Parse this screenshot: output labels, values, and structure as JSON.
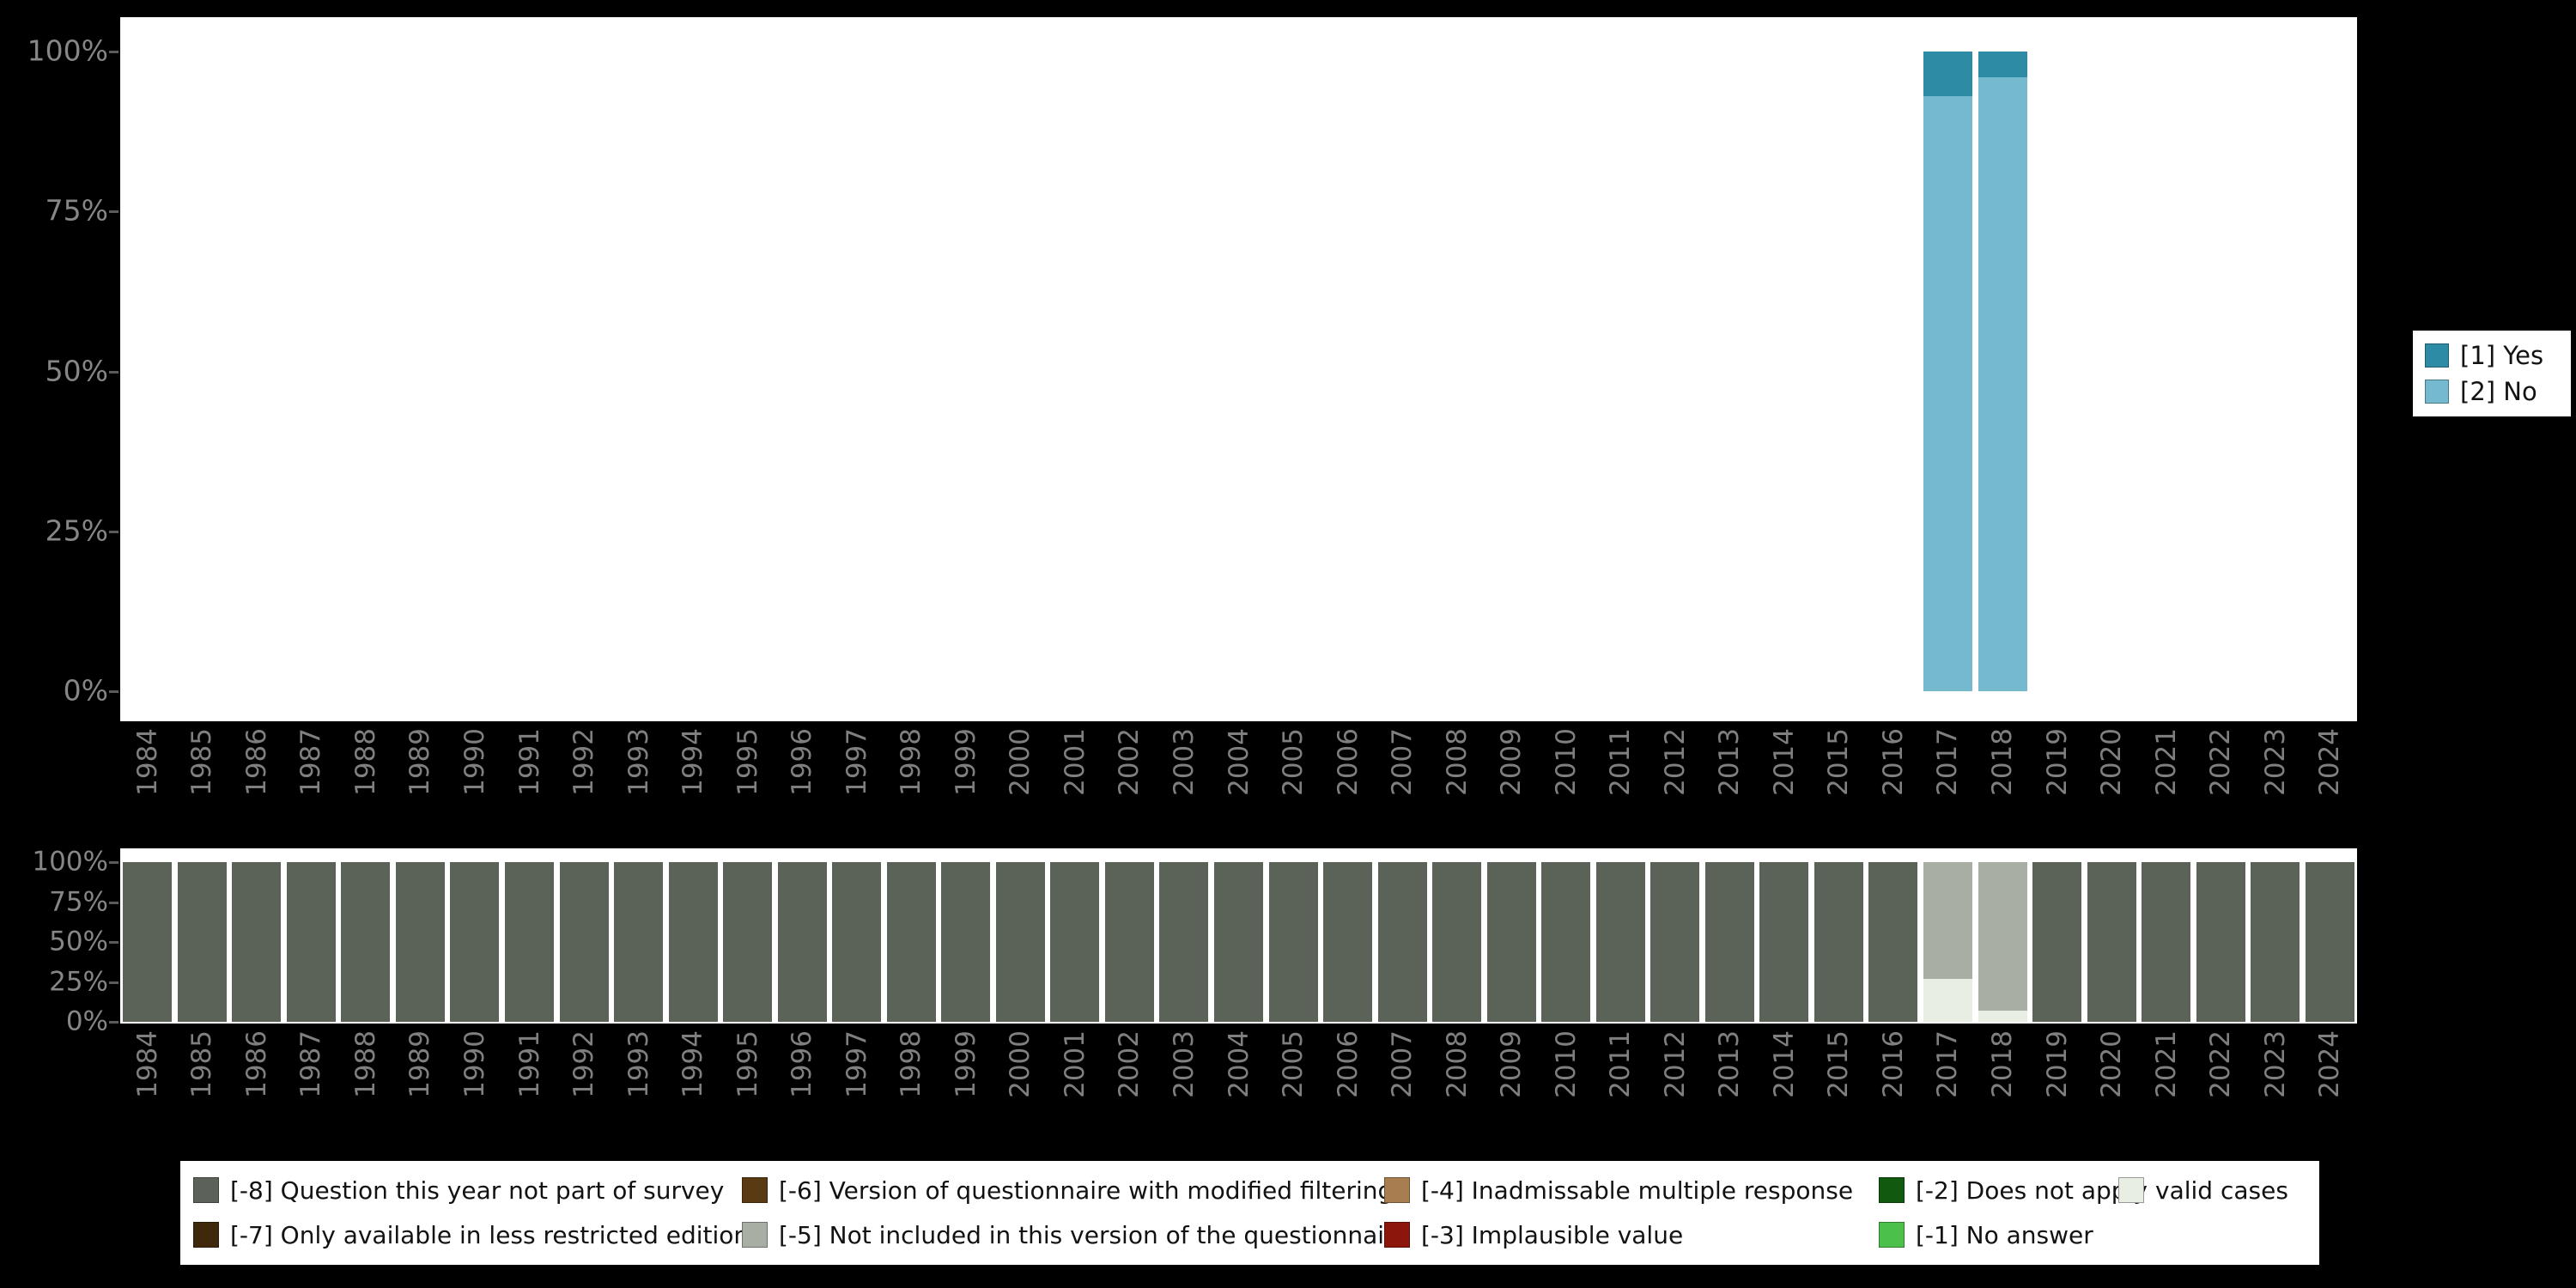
{
  "page": {
    "background": "#000000",
    "panel_background": "#ffffff",
    "axis_text_color": "#7f7f7f"
  },
  "colors": {
    "yes": "#2e8ba6",
    "no": "#74b9ce",
    "m8": "#5b6359",
    "m7": "#40280c",
    "m6": "#593a12",
    "m5": "#a8aea4",
    "m4": "#a87e50",
    "m3": "#8c150c",
    "m2": "#10590f",
    "m1": "#4bc14b",
    "valid": "#e8eee3"
  },
  "chart_data": [
    {
      "id": "answers-by-year",
      "type": "bar",
      "stacked": true,
      "title": "",
      "xlabel": "",
      "ylabel": "",
      "grid": false,
      "ylim": [
        0,
        100
      ],
      "ytick_labels": [
        "0%",
        "25%",
        "50%",
        "75%",
        "100%"
      ],
      "ytick_values": [
        0,
        25,
        50,
        75,
        100
      ],
      "legend_position": "right",
      "categories": [
        "1984",
        "1985",
        "1986",
        "1987",
        "1988",
        "1989",
        "1990",
        "1991",
        "1992",
        "1993",
        "1994",
        "1995",
        "1996",
        "1997",
        "1998",
        "1999",
        "2000",
        "2001",
        "2002",
        "2003",
        "2004",
        "2005",
        "2006",
        "2007",
        "2008",
        "2009",
        "2010",
        "2011",
        "2012",
        "2013",
        "2014",
        "2015",
        "2016",
        "2017",
        "2018",
        "2019",
        "2020",
        "2021",
        "2022",
        "2023",
        "2024"
      ],
      "series": [
        {
          "name": "[2] No",
          "color_key": "no",
          "values": [
            0,
            0,
            0,
            0,
            0,
            0,
            0,
            0,
            0,
            0,
            0,
            0,
            0,
            0,
            0,
            0,
            0,
            0,
            0,
            0,
            0,
            0,
            0,
            0,
            0,
            0,
            0,
            0,
            0,
            0,
            0,
            0,
            0,
            93,
            96,
            0,
            0,
            0,
            0,
            0,
            0
          ]
        },
        {
          "name": "[1] Yes",
          "color_key": "yes",
          "values": [
            0,
            0,
            0,
            0,
            0,
            0,
            0,
            0,
            0,
            0,
            0,
            0,
            0,
            0,
            0,
            0,
            0,
            0,
            0,
            0,
            0,
            0,
            0,
            0,
            0,
            0,
            0,
            0,
            0,
            0,
            0,
            0,
            0,
            7,
            4,
            0,
            0,
            0,
            0,
            0,
            0
          ]
        }
      ]
    },
    {
      "id": "missingness-by-year",
      "type": "bar",
      "stacked": true,
      "title": "",
      "xlabel": "",
      "ylabel": "",
      "grid": false,
      "ylim": [
        0,
        100
      ],
      "ytick_labels": [
        "0%",
        "25%",
        "50%",
        "75%",
        "100%"
      ],
      "ytick_values": [
        0,
        25,
        50,
        75,
        100
      ],
      "legend_position": "bottom",
      "categories": [
        "1984",
        "1985",
        "1986",
        "1987",
        "1988",
        "1989",
        "1990",
        "1991",
        "1992",
        "1993",
        "1994",
        "1995",
        "1996",
        "1997",
        "1998",
        "1999",
        "2000",
        "2001",
        "2002",
        "2003",
        "2004",
        "2005",
        "2006",
        "2007",
        "2008",
        "2009",
        "2010",
        "2011",
        "2012",
        "2013",
        "2014",
        "2015",
        "2016",
        "2017",
        "2018",
        "2019",
        "2020",
        "2021",
        "2022",
        "2023",
        "2024"
      ],
      "series": [
        {
          "name": "valid cases",
          "color_key": "valid",
          "values": [
            0,
            0,
            0,
            0,
            0,
            0,
            0,
            0,
            0,
            0,
            0,
            0,
            0,
            0,
            0,
            0,
            0,
            0,
            0,
            0,
            0,
            0,
            0,
            0,
            0,
            0,
            0,
            0,
            0,
            0,
            0,
            0,
            0,
            27,
            7,
            0,
            0,
            0,
            0,
            0,
            0
          ]
        },
        {
          "name": "[-5] Not included in this version of the questionnaire",
          "color_key": "m5",
          "values": [
            0,
            0,
            0,
            0,
            0,
            0,
            0,
            0,
            0,
            0,
            0,
            0,
            0,
            0,
            0,
            0,
            0,
            0,
            0,
            0,
            0,
            0,
            0,
            0,
            0,
            0,
            0,
            0,
            0,
            0,
            0,
            0,
            0,
            73,
            93,
            0,
            0,
            0,
            0,
            0,
            0
          ]
        },
        {
          "name": "[-8] Question this year not part of survey",
          "color_key": "m8",
          "values": [
            100,
            100,
            100,
            100,
            100,
            100,
            100,
            100,
            100,
            100,
            100,
            100,
            100,
            100,
            100,
            100,
            100,
            100,
            100,
            100,
            100,
            100,
            100,
            100,
            100,
            100,
            100,
            100,
            100,
            100,
            100,
            100,
            100,
            0,
            0,
            100,
            100,
            100,
            100,
            100,
            100
          ]
        }
      ]
    }
  ],
  "legend_right": {
    "items": [
      {
        "label": "[1] Yes",
        "color_key": "yes"
      },
      {
        "label": "[2] No",
        "color_key": "no"
      }
    ]
  },
  "legend_bottom": {
    "items": [
      {
        "label": "[-8] Question this year not part of survey",
        "color_key": "m8"
      },
      {
        "label": "[-6] Version of questionnaire with modified filtering",
        "color_key": "m6"
      },
      {
        "label": "[-4] Inadmissable multiple response",
        "color_key": "m4"
      },
      {
        "label": "[-2] Does not apply",
        "color_key": "m2"
      },
      {
        "label": "valid cases",
        "color_key": "valid"
      },
      {
        "label": "[-7] Only available in less restricted edition",
        "color_key": "m7"
      },
      {
        "label": "[-5] Not included in this version of the questionnaire",
        "color_key": "m5"
      },
      {
        "label": "[-3] Implausible value",
        "color_key": "m3"
      },
      {
        "label": "[-1] No answer",
        "color_key": "m1"
      }
    ]
  }
}
